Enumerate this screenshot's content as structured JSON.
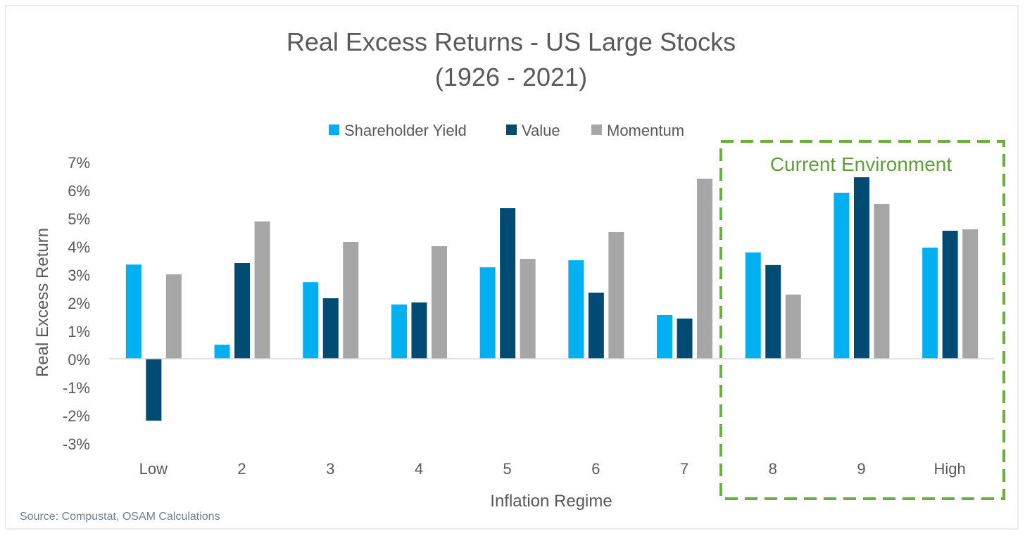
{
  "chart_data": {
    "type": "bar",
    "title": "Real Excess Returns - US Large Stocks",
    "subtitle": "(1926 - 2021)",
    "xlabel": "Inflation Regime",
    "ylabel": "Real Excess Return",
    "ylim": [
      -3,
      7
    ],
    "yticks": [
      "7%",
      "6%",
      "5%",
      "4%",
      "3%",
      "2%",
      "1%",
      "0%",
      "-1%",
      "-2%",
      "-3%"
    ],
    "categories": [
      "Low",
      "2",
      "3",
      "4",
      "5",
      "6",
      "7",
      "8",
      "9",
      "High"
    ],
    "series": [
      {
        "name": "Shareholder Yield",
        "color": "#00B0F0",
        "values": [
          3.35,
          0.5,
          2.72,
          1.93,
          3.25,
          3.5,
          1.55,
          3.78,
          5.9,
          3.95
        ]
      },
      {
        "name": "Value",
        "color": "#004B74",
        "values": [
          -2.2,
          3.4,
          2.15,
          2.0,
          5.35,
          2.35,
          1.43,
          3.33,
          6.45,
          4.55
        ]
      },
      {
        "name": "Momentum",
        "color": "#A6A6A6",
        "values": [
          3.0,
          4.88,
          4.15,
          4.0,
          3.55,
          4.5,
          6.4,
          2.28,
          5.5,
          4.6
        ]
      }
    ],
    "legend": "top-center",
    "annotation": {
      "text": "Current Environment",
      "color": "#6AAE3E",
      "covers": [
        "8",
        "9",
        "High"
      ]
    },
    "source": "Source: Compustat, OSAM Calculations"
  }
}
